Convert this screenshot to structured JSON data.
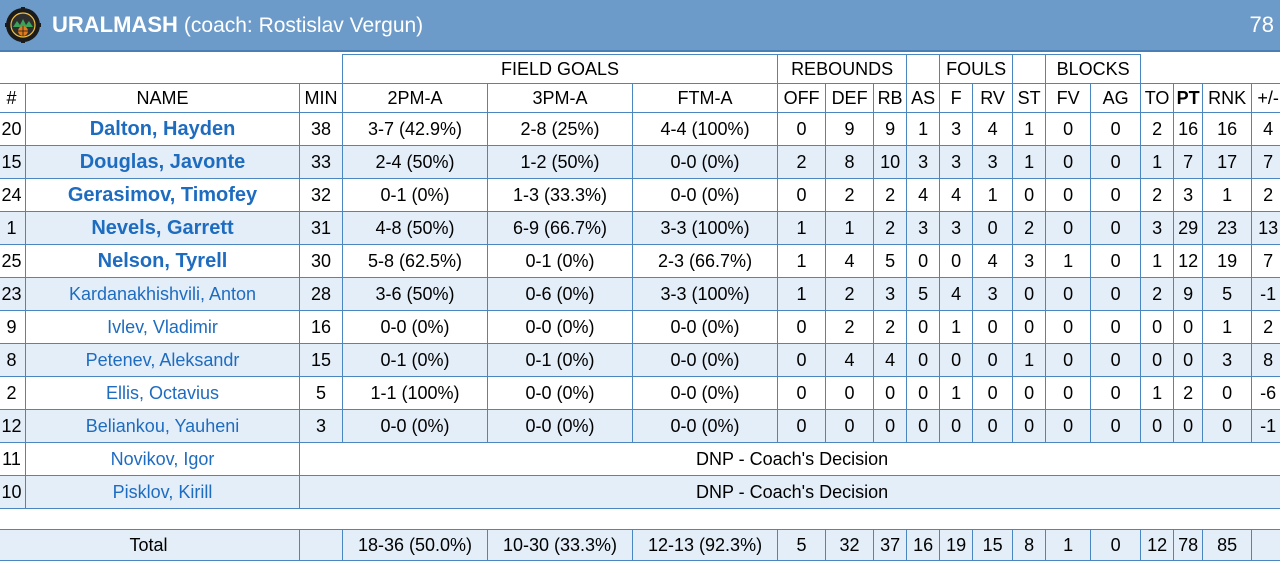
{
  "team": {
    "name": "URALMASH",
    "coach_text": "(coach: Rostislav Vergun)",
    "score": "78",
    "logo_icon": "uralmash-logo-icon"
  },
  "group_headers": {
    "field_goals": "FIELD GOALS",
    "rebounds": "REBOUNDS",
    "fouls": "FOULS",
    "blocks": "BLOCKS"
  },
  "columns": {
    "num": "#",
    "name": "NAME",
    "min": "MIN",
    "p2": "2PM-A",
    "p3": "3PM-A",
    "ft": "FTM-A",
    "off": "OFF",
    "def": "DEF",
    "rb": "RB",
    "as": "AS",
    "f": "F",
    "rv": "RV",
    "st": "ST",
    "fv": "FV",
    "ag": "AG",
    "to": "TO",
    "pt": "PT",
    "rnk": "RNK",
    "pm": "+/-"
  },
  "players": [
    {
      "num": "20",
      "name": "Dalton, Hayden",
      "starter": true,
      "min": "38",
      "p2": "3-7 (42.9%)",
      "p3": "2-8 (25%)",
      "ft": "4-4 (100%)",
      "off": "0",
      "def": "9",
      "rb": "9",
      "as": "1",
      "f": "3",
      "rv": "4",
      "st": "1",
      "fv": "0",
      "ag": "0",
      "to": "2",
      "pt": "16",
      "rnk": "16",
      "pm": "4"
    },
    {
      "num": "15",
      "name": "Douglas, Javonte",
      "starter": true,
      "min": "33",
      "p2": "2-4 (50%)",
      "p3": "1-2 (50%)",
      "ft": "0-0 (0%)",
      "off": "2",
      "def": "8",
      "rb": "10",
      "as": "3",
      "f": "3",
      "rv": "3",
      "st": "1",
      "fv": "0",
      "ag": "0",
      "to": "1",
      "pt": "7",
      "rnk": "17",
      "pm": "7"
    },
    {
      "num": "24",
      "name": "Gerasimov, Timofey",
      "starter": true,
      "min": "32",
      "p2": "0-1 (0%)",
      "p3": "1-3 (33.3%)",
      "ft": "0-0 (0%)",
      "off": "0",
      "def": "2",
      "rb": "2",
      "as": "4",
      "f": "4",
      "rv": "1",
      "st": "0",
      "fv": "0",
      "ag": "0",
      "to": "2",
      "pt": "3",
      "rnk": "1",
      "pm": "2"
    },
    {
      "num": "1",
      "name": "Nevels, Garrett",
      "starter": true,
      "min": "31",
      "p2": "4-8 (50%)",
      "p3": "6-9 (66.7%)",
      "ft": "3-3 (100%)",
      "off": "1",
      "def": "1",
      "rb": "2",
      "as": "3",
      "f": "3",
      "rv": "0",
      "st": "2",
      "fv": "0",
      "ag": "0",
      "to": "3",
      "pt": "29",
      "rnk": "23",
      "pm": "13"
    },
    {
      "num": "25",
      "name": "Nelson, Tyrell",
      "starter": true,
      "min": "30",
      "p2": "5-8 (62.5%)",
      "p3": "0-1 (0%)",
      "ft": "2-3 (66.7%)",
      "off": "1",
      "def": "4",
      "rb": "5",
      "as": "0",
      "f": "0",
      "rv": "4",
      "st": "3",
      "fv": "1",
      "ag": "0",
      "to": "1",
      "pt": "12",
      "rnk": "19",
      "pm": "7"
    },
    {
      "num": "23",
      "name": "Kardanakhishvili, Anton",
      "starter": false,
      "min": "28",
      "p2": "3-6 (50%)",
      "p3": "0-6 (0%)",
      "ft": "3-3 (100%)",
      "off": "1",
      "def": "2",
      "rb": "3",
      "as": "5",
      "f": "4",
      "rv": "3",
      "st": "0",
      "fv": "0",
      "ag": "0",
      "to": "2",
      "pt": "9",
      "rnk": "5",
      "pm": "-1"
    },
    {
      "num": "9",
      "name": "Ivlev, Vladimir",
      "starter": false,
      "min": "16",
      "p2": "0-0 (0%)",
      "p3": "0-0 (0%)",
      "ft": "0-0 (0%)",
      "off": "0",
      "def": "2",
      "rb": "2",
      "as": "0",
      "f": "1",
      "rv": "0",
      "st": "0",
      "fv": "0",
      "ag": "0",
      "to": "0",
      "pt": "0",
      "rnk": "1",
      "pm": "2"
    },
    {
      "num": "8",
      "name": "Petenev, Aleksandr",
      "starter": false,
      "min": "15",
      "p2": "0-1 (0%)",
      "p3": "0-1 (0%)",
      "ft": "0-0 (0%)",
      "off": "0",
      "def": "4",
      "rb": "4",
      "as": "0",
      "f": "0",
      "rv": "0",
      "st": "1",
      "fv": "0",
      "ag": "0",
      "to": "0",
      "pt": "0",
      "rnk": "3",
      "pm": "8"
    },
    {
      "num": "2",
      "name": "Ellis, Octavius",
      "starter": false,
      "min": "5",
      "p2": "1-1 (100%)",
      "p3": "0-0 (0%)",
      "ft": "0-0 (0%)",
      "off": "0",
      "def": "0",
      "rb": "0",
      "as": "0",
      "f": "1",
      "rv": "0",
      "st": "0",
      "fv": "0",
      "ag": "0",
      "to": "1",
      "pt": "2",
      "rnk": "0",
      "pm": "-6"
    },
    {
      "num": "12",
      "name": "Beliankou, Yauheni",
      "starter": false,
      "min": "3",
      "p2": "0-0 (0%)",
      "p3": "0-0 (0%)",
      "ft": "0-0 (0%)",
      "off": "0",
      "def": "0",
      "rb": "0",
      "as": "0",
      "f": "0",
      "rv": "0",
      "st": "0",
      "fv": "0",
      "ag": "0",
      "to": "0",
      "pt": "0",
      "rnk": "0",
      "pm": "-1"
    }
  ],
  "dnp_players": [
    {
      "num": "11",
      "name": "Novikov, Igor",
      "note": "DNP - Coach's Decision"
    },
    {
      "num": "10",
      "name": "Pisklov, Kirill",
      "note": "DNP - Coach's Decision"
    }
  ],
  "totals": {
    "label": "Total",
    "min": "",
    "p2": "18-36 (50.0%)",
    "p3": "10-30 (33.3%)",
    "ft": "12-13 (92.3%)",
    "off": "5",
    "def": "32",
    "rb": "37",
    "as": "16",
    "f": "19",
    "rv": "15",
    "st": "8",
    "fv": "1",
    "ag": "0",
    "to": "12",
    "pt": "78",
    "rnk": "85",
    "pm": ""
  }
}
